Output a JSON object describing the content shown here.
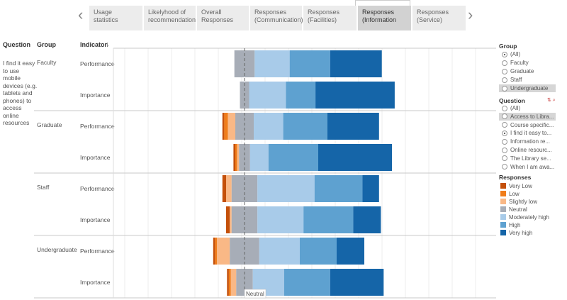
{
  "tabs": [
    {
      "label": "Usage statistics",
      "active": false
    },
    {
      "label": "Likelyhood of recommendation",
      "active": false
    },
    {
      "label": "Overall Responses",
      "active": false
    },
    {
      "label": "Responses (Communication)",
      "active": false
    },
    {
      "label": "Responses (Facilities)",
      "active": false
    },
    {
      "label": "Responses (Information",
      "active": true
    },
    {
      "label": "Responses (Service)",
      "active": false
    }
  ],
  "headers": {
    "question": "Question",
    "group": "Group",
    "indicator": "Indicator"
  },
  "question_text": "I find it easy to use mobile devices (e.g. tablets and phones) to access online resources",
  "group_panel": {
    "title": "Group",
    "options": [
      "(All)",
      "Faculty",
      "Graduate",
      "Staff",
      "Undergraduate"
    ],
    "selected": "(All)",
    "highlighted": "Undergraduate"
  },
  "question_panel": {
    "title": "Question",
    "options": [
      "(All)",
      "Access to Libra...",
      "Course specific...",
      "I find it easy to...",
      "Information re...",
      "Online resourc...",
      "The Library se...",
      "When I am awa..."
    ],
    "selected": "I find it easy to...",
    "highlighted": "Access to Libra..."
  },
  "chart_data": {
    "type": "bar",
    "subtype": "diverging-stacked-horizontal",
    "reference_line": "Neutral",
    "categories_levels": [
      "Very Low",
      "Low",
      "Slightly low",
      "Neutral",
      "Moderately high",
      "High",
      "Very high"
    ],
    "colors": {
      "Very Low": "#c4500a",
      "Low": "#f07d1a",
      "Slightly low": "#f9b886",
      "Neutral": "#a7adb7",
      "Moderately high": "#a8cbe9",
      "High": "#5ea1d0",
      "Very high": "#1565a8"
    },
    "legend_title": "Responses",
    "rows": [
      {
        "group": "Faculty",
        "indicator": "Performance",
        "values": [
          0,
          0,
          0,
          11,
          19,
          22,
          28
        ]
      },
      {
        "group": "Faculty",
        "indicator": "Importance",
        "values": [
          0,
          0,
          0,
          5,
          20,
          16,
          43
        ]
      },
      {
        "group": "Graduate",
        "indicator": "Performance",
        "values": [
          1,
          2,
          4,
          10,
          16,
          24,
          28
        ]
      },
      {
        "group": "Graduate",
        "indicator": "Importance",
        "values": [
          1,
          1,
          1,
          6,
          10,
          27,
          40
        ]
      },
      {
        "group": "Staff",
        "indicator": "Performance",
        "values": [
          2,
          0,
          3,
          14,
          31,
          26,
          9
        ]
      },
      {
        "group": "Staff",
        "indicator": "Importance",
        "values": [
          2,
          0,
          1,
          14,
          25,
          27,
          15
        ]
      },
      {
        "group": "Undergraduate",
        "indicator": "Performance",
        "values": [
          1,
          1,
          7,
          16,
          22,
          20,
          15
        ]
      },
      {
        "group": "Undergraduate",
        "indicator": "Importance",
        "values": [
          1,
          1,
          3,
          9,
          17,
          25,
          29
        ]
      }
    ]
  }
}
